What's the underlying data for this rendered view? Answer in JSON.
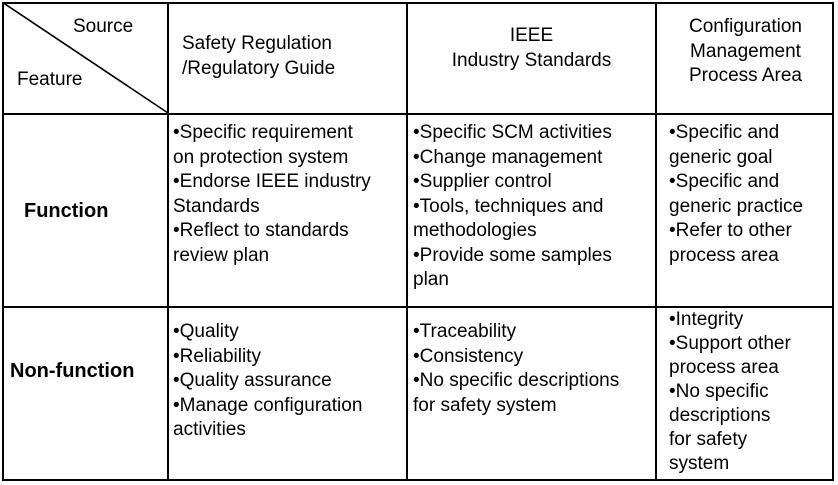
{
  "table": {
    "corner": {
      "source_label": "Source",
      "feature_label": "Feature"
    },
    "columns": [
      {
        "lines": [
          "Safety Regulation",
          "/Regulatory Guide"
        ]
      },
      {
        "lines": [
          "IEEE",
          "Industry Standards"
        ]
      },
      {
        "lines": [
          "Configuration",
          "Management",
          "Process Area"
        ]
      }
    ],
    "rows": [
      {
        "label": "Function",
        "cells": [
          [
            [
              "•Specific requirement",
              "on protection system"
            ],
            [
              "•Endorse IEEE industry",
              "Standards"
            ],
            [
              "•Reflect to standards",
              "review plan"
            ]
          ],
          [
            [
              "•Specific SCM activities"
            ],
            [
              "•Change management"
            ],
            [
              "•Supplier control"
            ],
            [
              "•Tools, techniques and",
              "methodologies"
            ],
            [
              "•Provide some samples",
              "plan"
            ]
          ],
          [
            [
              "•Specific and",
              "generic goal"
            ],
            [
              "•Specific and",
              "generic practice"
            ],
            [
              "•Refer to other",
              "process area"
            ]
          ]
        ]
      },
      {
        "label": "Non-function",
        "cells": [
          [
            [
              "•Quality"
            ],
            [
              "•Reliability"
            ],
            [
              "•Quality assurance"
            ],
            [
              "•Manage configuration",
              "activities"
            ]
          ],
          [
            [
              "•Traceability"
            ],
            [
              "•Consistency"
            ],
            [
              "•No specific descriptions",
              "for safety system"
            ]
          ],
          [
            [
              "•Integrity"
            ],
            [
              "•Support other",
              "process area"
            ],
            [
              "•No specific",
              "descriptions",
              "for safety",
              "system"
            ]
          ]
        ]
      }
    ]
  }
}
